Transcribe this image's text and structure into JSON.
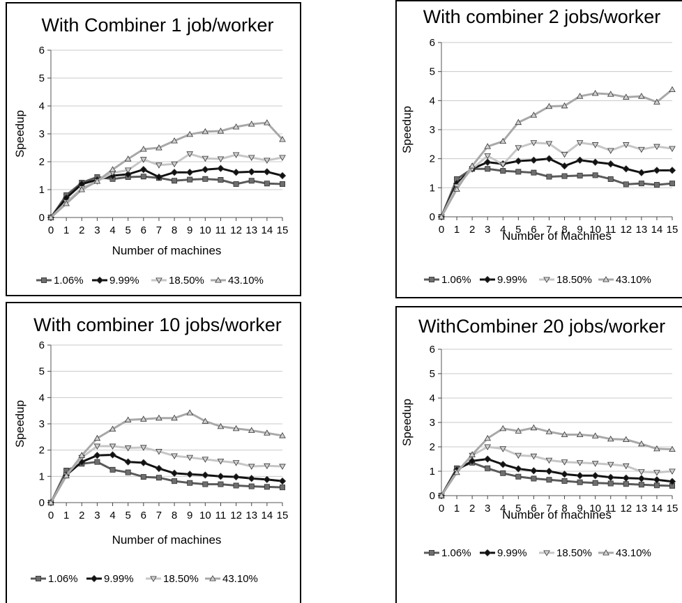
{
  "chart_data": [
    {
      "type": "line",
      "title": "With Combiner 1 job/worker",
      "xlabel": "Number of machines",
      "ylabel": "Speedup",
      "x": [
        0,
        1,
        2,
        3,
        4,
        5,
        6,
        7,
        8,
        9,
        10,
        11,
        12,
        13,
        14,
        15
      ],
      "ylim": [
        0,
        6
      ],
      "yticks": [
        0,
        1,
        2,
        3,
        4,
        5,
        6
      ],
      "grid": true,
      "legend": "bottom",
      "series": [
        {
          "name": "1.06%",
          "marker": "square",
          "color": "#5a5a5a",
          "values": [
            0,
            0.8,
            1.25,
            1.45,
            1.38,
            1.45,
            1.47,
            1.42,
            1.32,
            1.36,
            1.38,
            1.35,
            1.2,
            1.32,
            1.22,
            1.2
          ]
        },
        {
          "name": "9.99%",
          "marker": "diamond",
          "color": "#111111",
          "values": [
            0,
            0.7,
            1.2,
            1.35,
            1.5,
            1.55,
            1.72,
            1.45,
            1.62,
            1.62,
            1.72,
            1.76,
            1.62,
            1.64,
            1.64,
            1.5
          ]
        },
        {
          "name": "18.50%",
          "marker": "triangle-down",
          "color": "#c6c6c6",
          "values": [
            0,
            0.55,
            1.05,
            1.3,
            1.6,
            1.7,
            2.08,
            1.88,
            1.92,
            2.28,
            2.12,
            2.1,
            2.25,
            2.15,
            2.05,
            2.15
          ]
        },
        {
          "name": "43.10%",
          "marker": "triangle-up",
          "color": "#a8a8a8",
          "values": [
            0,
            0.5,
            1.0,
            1.3,
            1.72,
            2.1,
            2.45,
            2.5,
            2.75,
            2.98,
            3.08,
            3.1,
            3.25,
            3.35,
            3.4,
            2.8
          ]
        }
      ]
    },
    {
      "type": "line",
      "title": "With combiner 2 jobs/worker",
      "xlabel": "Number of Machines",
      "ylabel": "Speedup",
      "x": [
        0,
        1,
        2,
        3,
        4,
        5,
        6,
        7,
        8,
        9,
        10,
        11,
        12,
        13,
        14,
        15
      ],
      "ylim": [
        0,
        6
      ],
      "yticks": [
        0,
        1,
        2,
        3,
        4,
        5,
        6
      ],
      "grid": true,
      "legend": "bottom",
      "series": [
        {
          "name": "1.06%",
          "marker": "square",
          "color": "#5a5a5a",
          "values": [
            0,
            1.3,
            1.65,
            1.65,
            1.58,
            1.55,
            1.52,
            1.38,
            1.4,
            1.42,
            1.43,
            1.3,
            1.12,
            1.15,
            1.1,
            1.15
          ]
        },
        {
          "name": "9.99%",
          "marker": "diamond",
          "color": "#111111",
          "values": [
            0,
            1.15,
            1.65,
            1.88,
            1.82,
            1.92,
            1.95,
            2.0,
            1.75,
            1.95,
            1.88,
            1.82,
            1.65,
            1.52,
            1.6,
            1.6
          ]
        },
        {
          "name": "18.50%",
          "marker": "triangle-down",
          "color": "#c6c6c6",
          "values": [
            0,
            1.05,
            1.65,
            2.1,
            1.8,
            2.38,
            2.55,
            2.52,
            2.15,
            2.55,
            2.48,
            2.28,
            2.48,
            2.32,
            2.42,
            2.35
          ]
        },
        {
          "name": "43.10%",
          "marker": "triangle-up",
          "color": "#a8a8a8",
          "values": [
            0,
            0.95,
            1.75,
            2.42,
            2.6,
            3.25,
            3.5,
            3.8,
            3.82,
            4.15,
            4.25,
            4.22,
            4.12,
            4.15,
            3.95,
            4.38
          ]
        }
      ]
    },
    {
      "type": "line",
      "title": "With combiner 10 jobs/worker",
      "xlabel": "Number of machines",
      "ylabel": "Speedup",
      "x": [
        0,
        1,
        2,
        3,
        4,
        5,
        6,
        7,
        8,
        9,
        10,
        11,
        12,
        13,
        14,
        15
      ],
      "ylim": [
        0,
        6
      ],
      "yticks": [
        0,
        1,
        2,
        3,
        4,
        5,
        6
      ],
      "grid": true,
      "legend": "bottom",
      "series": [
        {
          "name": "1.06%",
          "marker": "square",
          "color": "#5a5a5a",
          "values": [
            0,
            1.22,
            1.48,
            1.55,
            1.25,
            1.15,
            0.98,
            0.95,
            0.82,
            0.75,
            0.7,
            0.7,
            0.65,
            0.62,
            0.6,
            0.58
          ]
        },
        {
          "name": "9.99%",
          "marker": "diamond",
          "color": "#111111",
          "values": [
            0,
            1.05,
            1.55,
            1.8,
            1.82,
            1.55,
            1.52,
            1.3,
            1.12,
            1.08,
            1.05,
            1.0,
            0.98,
            0.92,
            0.88,
            0.82
          ]
        },
        {
          "name": "18.50%",
          "marker": "triangle-down",
          "color": "#c6c6c6",
          "values": [
            0,
            1.05,
            1.72,
            2.15,
            2.15,
            2.08,
            2.1,
            1.95,
            1.78,
            1.72,
            1.65,
            1.58,
            1.52,
            1.38,
            1.4,
            1.38
          ]
        },
        {
          "name": "43.10%",
          "marker": "triangle-up",
          "color": "#a8a8a8",
          "values": [
            0,
            1.02,
            1.8,
            2.45,
            2.8,
            3.15,
            3.18,
            3.22,
            3.22,
            3.42,
            3.1,
            2.9,
            2.82,
            2.75,
            2.65,
            2.55
          ]
        }
      ]
    },
    {
      "type": "line",
      "title": "WithCombiner 20 jobs/worker",
      "xlabel": "Number of machines",
      "ylabel": "Speedup",
      "x": [
        0,
        1,
        2,
        3,
        4,
        5,
        6,
        7,
        8,
        9,
        10,
        11,
        12,
        13,
        14,
        15
      ],
      "ylim": [
        0,
        6
      ],
      "yticks": [
        0,
        1,
        2,
        3,
        4,
        5,
        6
      ],
      "grid": true,
      "legend": "bottom",
      "series": [
        {
          "name": "1.06%",
          "marker": "square",
          "color": "#5a5a5a",
          "values": [
            0,
            1.12,
            1.35,
            1.12,
            0.92,
            0.78,
            0.7,
            0.65,
            0.6,
            0.55,
            0.52,
            0.5,
            0.48,
            0.45,
            0.42,
            0.4
          ]
        },
        {
          "name": "9.99%",
          "marker": "diamond",
          "color": "#111111",
          "values": [
            0,
            1.05,
            1.42,
            1.5,
            1.28,
            1.1,
            1.02,
            1.0,
            0.88,
            0.82,
            0.82,
            0.75,
            0.72,
            0.7,
            0.65,
            0.58
          ]
        },
        {
          "name": "18.50%",
          "marker": "triangle-down",
          "color": "#c6c6c6",
          "values": [
            0,
            0.98,
            1.65,
            2.0,
            1.92,
            1.65,
            1.62,
            1.45,
            1.38,
            1.35,
            1.32,
            1.28,
            1.22,
            0.98,
            0.95,
            1.0
          ]
        },
        {
          "name": "43.10%",
          "marker": "triangle-up",
          "color": "#a8a8a8",
          "values": [
            0,
            0.95,
            1.68,
            2.35,
            2.75,
            2.65,
            2.78,
            2.62,
            2.5,
            2.5,
            2.45,
            2.32,
            2.3,
            2.12,
            1.92,
            1.9
          ]
        }
      ]
    }
  ]
}
